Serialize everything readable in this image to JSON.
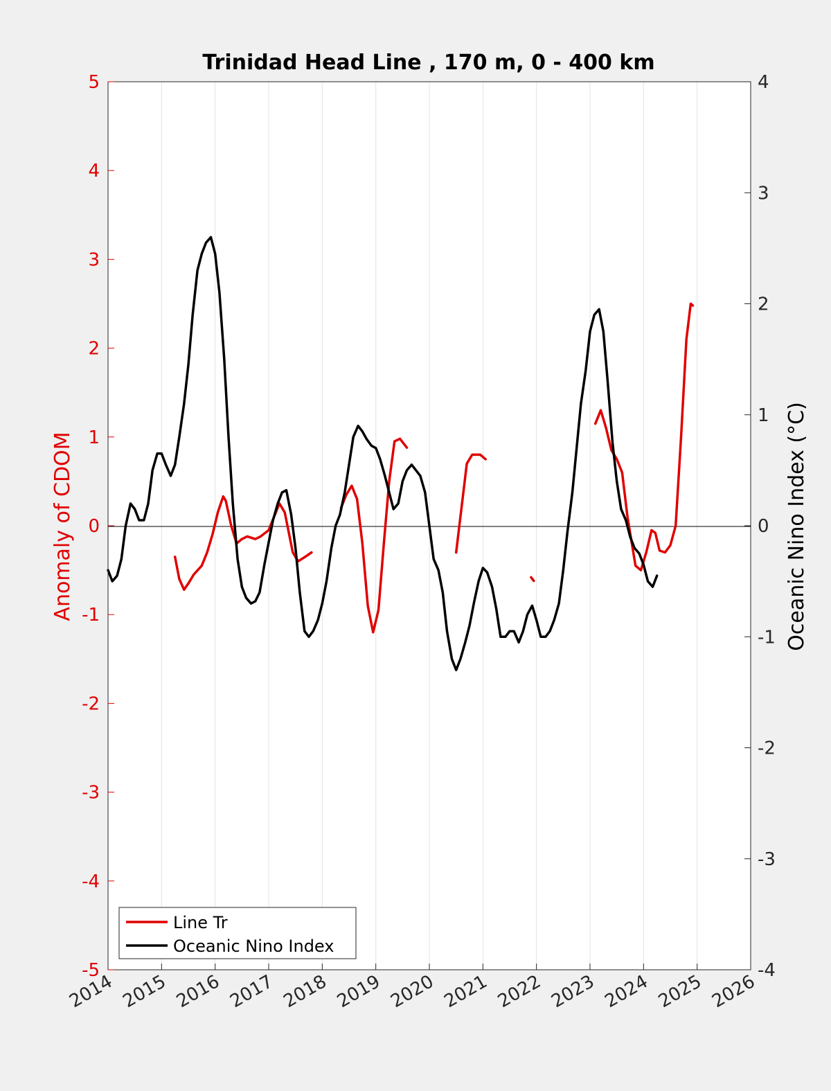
{
  "chart_data": {
    "type": "line",
    "title": "Trinidad Head Line , 170 m, 0 - 400 km",
    "xlabel": "",
    "ylabel_left": "Anomaly of CDOM",
    "ylabel_right": "Oceanic Nino Index (°C)",
    "xlim": [
      2014,
      2026
    ],
    "ylim_left": [
      -5,
      5
    ],
    "ylim_right": [
      -4,
      4
    ],
    "x_ticks": [
      "2014",
      "2015",
      "2016",
      "2017",
      "2018",
      "2019",
      "2020",
      "2021",
      "2022",
      "2023",
      "2024",
      "2025",
      "2026"
    ],
    "y_left_ticks": [
      "5",
      "4",
      "3",
      "2",
      "1",
      "0",
      "-1",
      "-2",
      "-3",
      "-4",
      "-5"
    ],
    "y_right_ticks": [
      "4",
      "3",
      "2",
      "1",
      "0",
      "-1",
      "-2",
      "-3",
      "-4"
    ],
    "grid": "vertical",
    "legend_position": "bottom-left",
    "colors": {
      "cdom": "#e00000",
      "oni": "#000000"
    },
    "series": [
      {
        "name": "Line Tr",
        "axis": "left",
        "segments": [
          [
            [
              2015.25,
              -0.35
            ],
            [
              2015.33,
              -0.6
            ],
            [
              2015.42,
              -0.72
            ],
            [
              2015.5,
              -0.65
            ],
            [
              2015.6,
              -0.55
            ],
            [
              2015.75,
              -0.45
            ],
            [
              2015.85,
              -0.3
            ],
            [
              2015.95,
              -0.1
            ],
            [
              2016.05,
              0.15
            ],
            [
              2016.15,
              0.33
            ],
            [
              2016.2,
              0.28
            ],
            [
              2016.3,
              0.0
            ],
            [
              2016.4,
              -0.2
            ],
            [
              2016.5,
              -0.15
            ],
            [
              2016.6,
              -0.12
            ],
            [
              2016.75,
              -0.15
            ],
            [
              2016.85,
              -0.12
            ],
            [
              2017.0,
              -0.05
            ],
            [
              2017.1,
              0.1
            ],
            [
              2017.2,
              0.25
            ],
            [
              2017.3,
              0.15
            ],
            [
              2017.45,
              -0.3
            ],
            [
              2017.55,
              -0.4
            ],
            [
              2017.68,
              -0.35
            ],
            [
              2017.8,
              -0.3
            ]
          ],
          [
            [
              2018.35,
              0.2
            ],
            [
              2018.45,
              0.35
            ],
            [
              2018.55,
              0.45
            ],
            [
              2018.65,
              0.3
            ],
            [
              2018.75,
              -0.2
            ],
            [
              2018.85,
              -0.9
            ],
            [
              2018.95,
              -1.2
            ],
            [
              2019.05,
              -0.95
            ],
            [
              2019.15,
              -0.2
            ],
            [
              2019.25,
              0.5
            ],
            [
              2019.35,
              0.95
            ],
            [
              2019.45,
              0.98
            ],
            [
              2019.58,
              0.88
            ]
          ],
          [
            [
              2020.5,
              -0.3
            ],
            [
              2020.6,
              0.2
            ],
            [
              2020.7,
              0.7
            ],
            [
              2020.8,
              0.8
            ],
            [
              2020.95,
              0.8
            ],
            [
              2021.05,
              0.75
            ]
          ],
          [
            [
              2021.9,
              -0.58
            ],
            [
              2021.95,
              -0.62
            ]
          ],
          [
            [
              2023.1,
              1.15
            ],
            [
              2023.2,
              1.3
            ],
            [
              2023.3,
              1.1
            ],
            [
              2023.4,
              0.85
            ],
            [
              2023.5,
              0.75
            ],
            [
              2023.6,
              0.6
            ],
            [
              2023.7,
              0.1
            ],
            [
              2023.85,
              -0.45
            ],
            [
              2023.95,
              -0.5
            ],
            [
              2024.05,
              -0.3
            ],
            [
              2024.15,
              -0.05
            ],
            [
              2024.22,
              -0.08
            ],
            [
              2024.3,
              -0.28
            ],
            [
              2024.4,
              -0.3
            ],
            [
              2024.5,
              -0.22
            ],
            [
              2024.6,
              0.0
            ],
            [
              2024.7,
              1.0
            ],
            [
              2024.8,
              2.1
            ],
            [
              2024.88,
              2.5
            ],
            [
              2024.92,
              2.48
            ]
          ]
        ]
      },
      {
        "name": "Oceanic Nino Index",
        "axis": "right",
        "segments": [
          [
            [
              2014.0,
              -0.4
            ],
            [
              2014.08,
              -0.5
            ],
            [
              2014.17,
              -0.45
            ],
            [
              2014.25,
              -0.3
            ],
            [
              2014.33,
              0.0
            ],
            [
              2014.42,
              0.2
            ],
            [
              2014.5,
              0.15
            ],
            [
              2014.58,
              0.05
            ],
            [
              2014.67,
              0.05
            ],
            [
              2014.75,
              0.2
            ],
            [
              2014.83,
              0.5
            ],
            [
              2014.92,
              0.65
            ],
            [
              2015.0,
              0.65
            ],
            [
              2015.08,
              0.55
            ],
            [
              2015.17,
              0.45
            ],
            [
              2015.25,
              0.55
            ],
            [
              2015.33,
              0.8
            ],
            [
              2015.42,
              1.1
            ],
            [
              2015.5,
              1.45
            ],
            [
              2015.58,
              1.9
            ],
            [
              2015.67,
              2.3
            ],
            [
              2015.75,
              2.45
            ],
            [
              2015.83,
              2.55
            ],
            [
              2015.92,
              2.6
            ],
            [
              2016.0,
              2.45
            ],
            [
              2016.08,
              2.1
            ],
            [
              2016.17,
              1.5
            ],
            [
              2016.25,
              0.8
            ],
            [
              2016.33,
              0.2
            ],
            [
              2016.42,
              -0.3
            ],
            [
              2016.5,
              -0.55
            ],
            [
              2016.58,
              -0.65
            ],
            [
              2016.67,
              -0.7
            ],
            [
              2016.75,
              -0.68
            ],
            [
              2016.83,
              -0.6
            ],
            [
              2016.92,
              -0.35
            ],
            [
              2017.0,
              -0.15
            ],
            [
              2017.08,
              0.05
            ],
            [
              2017.17,
              0.2
            ],
            [
              2017.25,
              0.3
            ],
            [
              2017.33,
              0.32
            ],
            [
              2017.42,
              0.1
            ],
            [
              2017.5,
              -0.2
            ],
            [
              2017.58,
              -0.6
            ],
            [
              2017.67,
              -0.95
            ],
            [
              2017.75,
              -1.0
            ],
            [
              2017.83,
              -0.95
            ],
            [
              2017.92,
              -0.85
            ],
            [
              2018.0,
              -0.7
            ],
            [
              2018.08,
              -0.5
            ],
            [
              2018.17,
              -0.2
            ],
            [
              2018.25,
              0.0
            ],
            [
              2018.33,
              0.1
            ],
            [
              2018.42,
              0.3
            ],
            [
              2018.5,
              0.55
            ],
            [
              2018.58,
              0.8
            ],
            [
              2018.67,
              0.9
            ],
            [
              2018.75,
              0.85
            ],
            [
              2018.83,
              0.78
            ],
            [
              2018.92,
              0.72
            ],
            [
              2019.0,
              0.7
            ],
            [
              2019.08,
              0.6
            ],
            [
              2019.17,
              0.45
            ],
            [
              2019.25,
              0.3
            ],
            [
              2019.33,
              0.15
            ],
            [
              2019.42,
              0.2
            ],
            [
              2019.5,
              0.4
            ],
            [
              2019.58,
              0.5
            ],
            [
              2019.67,
              0.55
            ],
            [
              2019.75,
              0.5
            ],
            [
              2019.83,
              0.45
            ],
            [
              2019.92,
              0.3
            ],
            [
              2020.0,
              0.0
            ],
            [
              2020.08,
              -0.3
            ],
            [
              2020.17,
              -0.4
            ],
            [
              2020.25,
              -0.6
            ],
            [
              2020.33,
              -0.95
            ],
            [
              2020.42,
              -1.2
            ],
            [
              2020.5,
              -1.3
            ],
            [
              2020.58,
              -1.2
            ],
            [
              2020.67,
              -1.05
            ],
            [
              2020.75,
              -0.9
            ],
            [
              2020.83,
              -0.7
            ],
            [
              2020.92,
              -0.5
            ],
            [
              2021.0,
              -0.38
            ],
            [
              2021.08,
              -0.42
            ],
            [
              2021.17,
              -0.55
            ],
            [
              2021.25,
              -0.75
            ],
            [
              2021.33,
              -1.0
            ],
            [
              2021.42,
              -1.0
            ],
            [
              2021.5,
              -0.95
            ],
            [
              2021.58,
              -0.95
            ],
            [
              2021.67,
              -1.05
            ],
            [
              2021.75,
              -0.95
            ],
            [
              2021.83,
              -0.8
            ],
            [
              2021.92,
              -0.72
            ],
            [
              2022.0,
              -0.85
            ],
            [
              2022.08,
              -1.0
            ],
            [
              2022.17,
              -1.0
            ],
            [
              2022.25,
              -0.95
            ],
            [
              2022.33,
              -0.85
            ],
            [
              2022.42,
              -0.7
            ],
            [
              2022.5,
              -0.4
            ],
            [
              2022.58,
              -0.05
            ],
            [
              2022.67,
              0.3
            ],
            [
              2022.75,
              0.7
            ],
            [
              2022.83,
              1.1
            ],
            [
              2022.92,
              1.4
            ],
            [
              2023.0,
              1.75
            ],
            [
              2023.08,
              1.9
            ],
            [
              2023.17,
              1.95
            ],
            [
              2023.25,
              1.75
            ],
            [
              2023.33,
              1.3
            ],
            [
              2023.42,
              0.75
            ],
            [
              2023.5,
              0.4
            ],
            [
              2023.58,
              0.15
            ],
            [
              2023.67,
              0.05
            ],
            [
              2023.75,
              -0.1
            ],
            [
              2023.83,
              -0.2
            ],
            [
              2023.92,
              -0.25
            ],
            [
              2024.0,
              -0.35
            ],
            [
              2024.08,
              -0.5
            ],
            [
              2024.17,
              -0.55
            ],
            [
              2024.25,
              -0.45
            ]
          ]
        ]
      }
    ]
  }
}
